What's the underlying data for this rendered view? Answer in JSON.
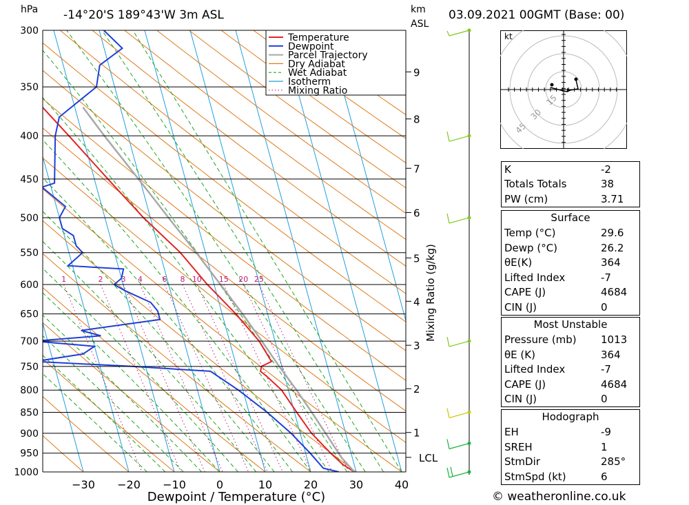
{
  "header": {
    "location": "-14°20'S  189°43'W  3m  ASL",
    "datetime": "03.09.2021  00GMT  (Base: 00)",
    "hpa_label": "hPa",
    "km_label": "km",
    "asl_label": "ASL"
  },
  "chart_data": {
    "type": "line",
    "title": "",
    "xlabel": "Dewpoint / Temperature (°C)",
    "ylabel": "hPa",
    "right_ylabel": "Mixing Ratio (g/kg)",
    "x_ticks": [
      -30,
      -20,
      -10,
      0,
      10,
      20,
      30,
      40
    ],
    "pressure_levels": [
      300,
      350,
      400,
      450,
      500,
      550,
      600,
      650,
      700,
      750,
      800,
      850,
      900,
      950,
      1000
    ],
    "km_ticks": [
      {
        "label": "9",
        "p": 336
      },
      {
        "label": "8",
        "p": 382
      },
      {
        "label": "7",
        "p": 437
      },
      {
        "label": "6",
        "p": 493
      },
      {
        "label": "5",
        "p": 558
      },
      {
        "label": "4",
        "p": 628
      },
      {
        "label": "3",
        "p": 708
      },
      {
        "label": "2",
        "p": 797
      },
      {
        "label": "1",
        "p": 898
      },
      {
        "label": "LCL",
        "p": 961
      }
    ],
    "mixing_ratio_labels": [
      "1",
      "2",
      "3",
      "4",
      "6",
      "8",
      "10",
      "15",
      "20",
      "25"
    ],
    "legend": [
      "Temperature",
      "Dewpoint",
      "Parcel Trajectory",
      "Dry Adiabat",
      "Wet Adiabat",
      "Isotherm",
      "Mixing Ratio"
    ],
    "legend_position": "top-right",
    "colors": {
      "temperature": "#e32424",
      "dewpoint": "#1f3fd6",
      "parcel": "#a8a8a8",
      "dry_adiabat": "#e07a1a",
      "wet_adiabat": "#1ea51e",
      "isotherm": "#1f9ee0",
      "mixing_ratio": "#c0187a"
    },
    "series": [
      {
        "name": "Temperature",
        "points": [
          [
            1000,
            29.6
          ],
          [
            980,
            27.5
          ],
          [
            950,
            25.5
          ],
          [
            900,
            22.5
          ],
          [
            850,
            20.5
          ],
          [
            800,
            18.5
          ],
          [
            770,
            16
          ],
          [
            760,
            15
          ],
          [
            750,
            15.5
          ],
          [
            740,
            18
          ],
          [
            700,
            16.5
          ],
          [
            650,
            13
          ],
          [
            600,
            8.5
          ],
          [
            550,
            4.5
          ],
          [
            500,
            -1.5
          ],
          [
            450,
            -7
          ],
          [
            400,
            -13
          ],
          [
            350,
            -20
          ],
          [
            300,
            -29
          ]
        ]
      },
      {
        "name": "Dewpoint",
        "points": [
          [
            1000,
            26.2
          ],
          [
            990,
            23
          ],
          [
            950,
            21
          ],
          [
            900,
            18
          ],
          [
            850,
            14
          ],
          [
            800,
            9
          ],
          [
            760,
            4
          ],
          [
            750,
            -13
          ],
          [
            740,
            -34
          ],
          [
            725,
            -23
          ],
          [
            710,
            -20
          ],
          [
            700,
            -33
          ],
          [
            690,
            -18
          ],
          [
            680,
            -22
          ],
          [
            660,
            -4
          ],
          [
            645,
            -4
          ],
          [
            630,
            -5
          ],
          [
            610,
            -10
          ],
          [
            600,
            -12
          ],
          [
            590,
            -10
          ],
          [
            575,
            -9
          ],
          [
            570,
            -21
          ],
          [
            550,
            -17
          ],
          [
            540,
            -18
          ],
          [
            525,
            -18
          ],
          [
            515,
            -20
          ],
          [
            500,
            -20
          ],
          [
            485,
            -18
          ],
          [
            460,
            -22
          ],
          [
            455,
            -19
          ],
          [
            400,
            -16
          ],
          [
            380,
            -14
          ],
          [
            350,
            -4
          ],
          [
            330,
            -2
          ],
          [
            315,
            4
          ],
          [
            300,
            1
          ]
        ]
      },
      {
        "name": "Parcel Trajectory",
        "points": [
          [
            1000,
            29.6
          ],
          [
            961,
            27.6
          ],
          [
            900,
            25.6
          ],
          [
            850,
            23.8
          ],
          [
            800,
            21.8
          ],
          [
            750,
            19.4
          ],
          [
            700,
            17.1
          ],
          [
            650,
            14.5
          ],
          [
            600,
            11.4
          ],
          [
            550,
            8
          ],
          [
            500,
            4
          ],
          [
            450,
            -0.3
          ],
          [
            400,
            -5.2
          ],
          [
            370,
            -8.2
          ]
        ]
      }
    ],
    "wind_barbs": [
      {
        "p": 300,
        "speed_kt": 5
      },
      {
        "p": 400,
        "speed_kt": 10
      },
      {
        "p": 500,
        "speed_kt": 10
      },
      {
        "p": 700,
        "speed_kt": 10
      },
      {
        "p": 850,
        "speed_kt": 10
      },
      {
        "p": 925,
        "speed_kt": 10
      },
      {
        "p": 1000,
        "speed_kt": 15
      }
    ]
  },
  "hodograph": {
    "unit_label": "kt",
    "ring_labels": [
      "15",
      "30",
      "45"
    ]
  },
  "indices": {
    "k": {
      "label": "K",
      "value": "-2"
    },
    "tt": {
      "label": "Totals Totals",
      "value": "38"
    },
    "pw": {
      "label": "PW (cm)",
      "value": "3.71"
    }
  },
  "surface": {
    "title": "Surface",
    "rows": [
      {
        "label": "Temp (°C)",
        "value": "29.6"
      },
      {
        "label": "Dewp (°C)",
        "value": "26.2"
      },
      {
        "label": "θE(K)",
        "value": "364"
      },
      {
        "label": "Lifted Index",
        "value": "-7"
      },
      {
        "label": "CAPE (J)",
        "value": "4684"
      },
      {
        "label": "CIN (J)",
        "value": "0"
      }
    ]
  },
  "most_unstable": {
    "title": "Most Unstable",
    "rows": [
      {
        "label": "Pressure (mb)",
        "value": "1013"
      },
      {
        "label": "θE (K)",
        "value": "364"
      },
      {
        "label": "Lifted Index",
        "value": "-7"
      },
      {
        "label": "CAPE (J)",
        "value": "4684"
      },
      {
        "label": "CIN (J)",
        "value": "0"
      }
    ]
  },
  "hodo_table": {
    "title": "Hodograph",
    "rows": [
      {
        "label": "EH",
        "value": "-9"
      },
      {
        "label": "SREH",
        "value": "1"
      },
      {
        "label": "StmDir",
        "value": "285°"
      },
      {
        "label": "StmSpd (kt)",
        "value": "6"
      }
    ]
  },
  "footer": {
    "credit": "© weatheronline.co.uk"
  }
}
